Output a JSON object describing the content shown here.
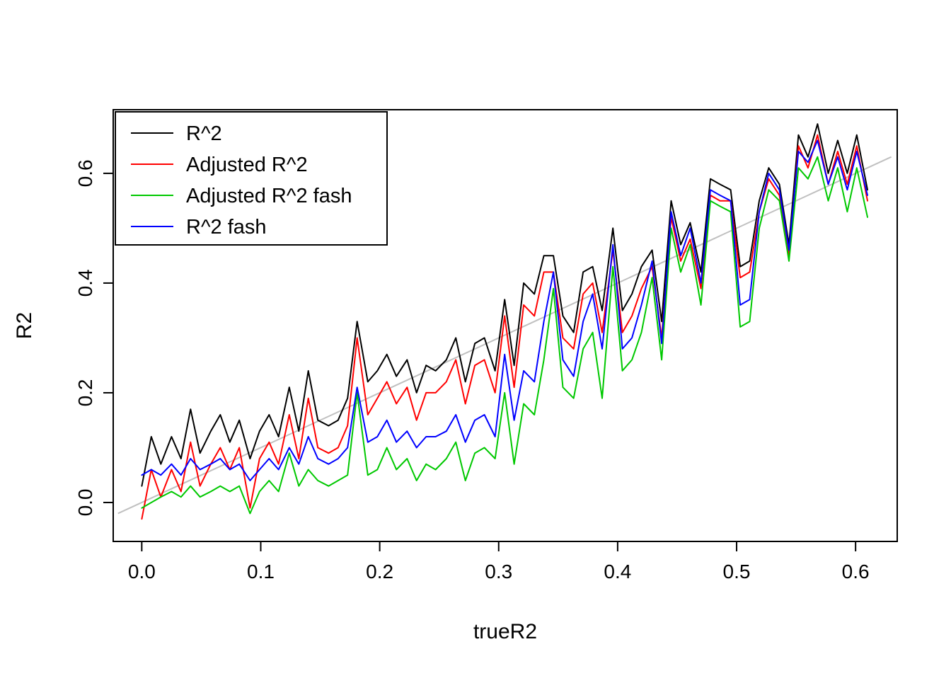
{
  "figure": {
    "background": "#ffffff",
    "description": "R base-graphics line plot comparing R^2 estimators against true R^2"
  },
  "chart_data": {
    "type": "line",
    "title": "",
    "xlabel": "trueR2",
    "ylabel": "R2",
    "xlim": [
      -0.024,
      0.635
    ],
    "ylim": [
      -0.071,
      0.716
    ],
    "x_ticks": [
      0.0,
      0.1,
      0.2,
      0.3,
      0.4,
      0.5,
      0.6
    ],
    "x_tick_labels": [
      "0.0",
      "0.1",
      "0.2",
      "0.3",
      "0.4",
      "0.5",
      "0.6"
    ],
    "y_ticks": [
      0.0,
      0.2,
      0.4,
      0.6
    ],
    "y_tick_labels": [
      "0.0",
      "0.2",
      "0.4",
      "0.6"
    ],
    "grid": false,
    "legend_position": "top-left",
    "axis_color": "#000000",
    "reference_line": {
      "type": "identity",
      "from": -0.02,
      "to": 0.63,
      "color": "#c0c0c0"
    },
    "x": [
      0,
      0.008,
      0.016,
      0.025,
      0.033,
      0.041,
      0.049,
      0.058,
      0.066,
      0.074,
      0.082,
      0.091,
      0.099,
      0.107,
      0.115,
      0.124,
      0.132,
      0.14,
      0.148,
      0.157,
      0.165,
      0.173,
      0.181,
      0.19,
      0.198,
      0.206,
      0.214,
      0.223,
      0.231,
      0.239,
      0.247,
      0.256,
      0.264,
      0.272,
      0.28,
      0.288,
      0.297,
      0.305,
      0.313,
      0.321,
      0.33,
      0.338,
      0.346,
      0.354,
      0.363,
      0.371,
      0.379,
      0.387,
      0.396,
      0.404,
      0.412,
      0.42,
      0.429,
      0.437,
      0.445,
      0.453,
      0.461,
      0.47,
      0.478,
      0.486,
      0.495,
      0.503,
      0.511,
      0.519,
      0.527,
      0.536,
      0.544,
      0.552,
      0.56,
      0.568,
      0.577,
      0.585,
      0.593,
      0.601,
      0.61
    ],
    "series": [
      {
        "name": "R^2",
        "color": "#000000",
        "values": [
          0.03,
          0.12,
          0.07,
          0.12,
          0.08,
          0.17,
          0.09,
          0.13,
          0.16,
          0.11,
          0.15,
          0.08,
          0.13,
          0.16,
          0.12,
          0.21,
          0.13,
          0.24,
          0.15,
          0.14,
          0.15,
          0.19,
          0.33,
          0.22,
          0.24,
          0.27,
          0.23,
          0.26,
          0.2,
          0.25,
          0.24,
          0.26,
          0.3,
          0.22,
          0.29,
          0.3,
          0.24,
          0.37,
          0.25,
          0.4,
          0.38,
          0.45,
          0.45,
          0.34,
          0.31,
          0.42,
          0.43,
          0.35,
          0.5,
          0.35,
          0.38,
          0.43,
          0.46,
          0.33,
          0.55,
          0.47,
          0.51,
          0.42,
          0.59,
          0.58,
          0.57,
          0.43,
          0.44,
          0.55,
          0.61,
          0.58,
          0.47,
          0.67,
          0.63,
          0.69,
          0.6,
          0.66,
          0.6,
          0.67,
          0.57
        ]
      },
      {
        "name": "Adjusted R^2",
        "color": "#ff0000",
        "values": [
          -0.03,
          0.06,
          0.01,
          0.06,
          0.02,
          0.11,
          0.03,
          0.07,
          0.1,
          0.06,
          0.1,
          -0.01,
          0.08,
          0.11,
          0.07,
          0.16,
          0.08,
          0.19,
          0.1,
          0.09,
          0.1,
          0.14,
          0.3,
          0.16,
          0.19,
          0.22,
          0.18,
          0.21,
          0.15,
          0.2,
          0.2,
          0.22,
          0.26,
          0.18,
          0.25,
          0.26,
          0.2,
          0.34,
          0.21,
          0.36,
          0.34,
          0.42,
          0.42,
          0.3,
          0.28,
          0.38,
          0.4,
          0.31,
          0.46,
          0.31,
          0.34,
          0.39,
          0.43,
          0.3,
          0.52,
          0.44,
          0.48,
          0.39,
          0.56,
          0.55,
          0.55,
          0.41,
          0.42,
          0.53,
          0.59,
          0.56,
          0.45,
          0.65,
          0.61,
          0.67,
          0.58,
          0.64,
          0.58,
          0.65,
          0.55
        ]
      },
      {
        "name": "Adjusted R^2 fash",
        "color": "#00c800",
        "values": [
          -0.01,
          0.0,
          0.01,
          0.02,
          0.01,
          0.03,
          0.01,
          0.02,
          0.03,
          0.02,
          0.03,
          -0.02,
          0.02,
          0.04,
          0.02,
          0.09,
          0.03,
          0.06,
          0.04,
          0.03,
          0.04,
          0.05,
          0.2,
          0.05,
          0.06,
          0.1,
          0.06,
          0.08,
          0.04,
          0.07,
          0.06,
          0.08,
          0.11,
          0.04,
          0.09,
          0.1,
          0.08,
          0.2,
          0.07,
          0.18,
          0.16,
          0.26,
          0.39,
          0.21,
          0.19,
          0.28,
          0.31,
          0.19,
          0.43,
          0.24,
          0.26,
          0.31,
          0.41,
          0.26,
          0.5,
          0.42,
          0.47,
          0.36,
          0.55,
          0.54,
          0.53,
          0.32,
          0.33,
          0.5,
          0.57,
          0.55,
          0.44,
          0.61,
          0.59,
          0.63,
          0.55,
          0.61,
          0.53,
          0.61,
          0.52
        ]
      },
      {
        "name": "R^2 fash",
        "color": "#0000ff",
        "values": [
          0.05,
          0.06,
          0.05,
          0.07,
          0.05,
          0.08,
          0.06,
          0.07,
          0.08,
          0.06,
          0.07,
          0.04,
          0.06,
          0.08,
          0.06,
          0.1,
          0.07,
          0.12,
          0.08,
          0.07,
          0.08,
          0.1,
          0.21,
          0.11,
          0.12,
          0.15,
          0.11,
          0.13,
          0.1,
          0.12,
          0.12,
          0.13,
          0.16,
          0.11,
          0.15,
          0.16,
          0.12,
          0.27,
          0.15,
          0.24,
          0.22,
          0.33,
          0.42,
          0.26,
          0.23,
          0.33,
          0.38,
          0.28,
          0.47,
          0.28,
          0.3,
          0.36,
          0.44,
          0.29,
          0.53,
          0.45,
          0.5,
          0.4,
          0.57,
          0.56,
          0.55,
          0.36,
          0.37,
          0.53,
          0.6,
          0.57,
          0.46,
          0.64,
          0.62,
          0.66,
          0.58,
          0.63,
          0.57,
          0.64,
          0.56
        ]
      }
    ]
  }
}
